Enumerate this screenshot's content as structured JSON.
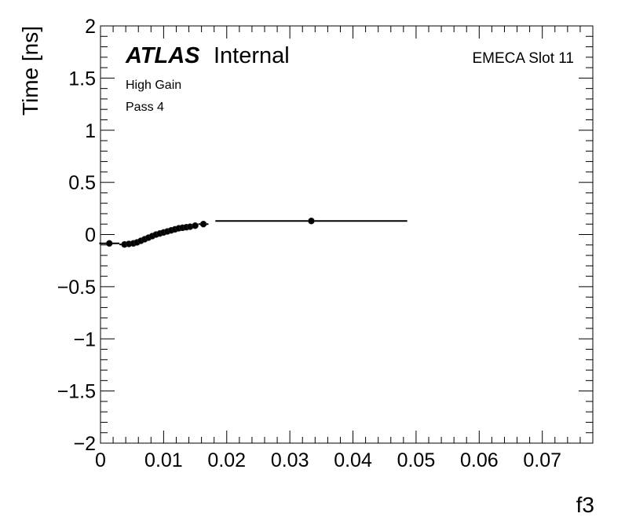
{
  "chart_data": {
    "type": "scatter",
    "title": "",
    "xlabel": "f3",
    "ylabel": "Time [ns]",
    "xlim": [
      0,
      0.078
    ],
    "ylim": [
      -2,
      2
    ],
    "x_ticks": [
      "0",
      "0.01",
      "0.02",
      "0.03",
      "0.04",
      "0.05",
      "0.06",
      "0.07"
    ],
    "x_tick_values": [
      0,
      0.01,
      0.02,
      0.03,
      0.04,
      0.05,
      0.06,
      0.07
    ],
    "y_ticks": [
      "2",
      "1.5",
      "1",
      "0.5",
      "0",
      "−0.5",
      "−1",
      "−1.5",
      "−2"
    ],
    "y_tick_values": [
      2,
      1.5,
      1,
      0.5,
      0,
      -0.5,
      -1,
      -1.5,
      -2
    ],
    "annotations": {
      "atlas": "ATLAS",
      "internal": "Internal",
      "gain": "High Gain",
      "pass": "Pass 4",
      "slot": "EMECA Slot 11"
    },
    "points": [
      {
        "x": 0.0014,
        "y": -0.085,
        "xerr": 0.0016
      },
      {
        "x": 0.0038,
        "y": -0.095,
        "xerr": 0.0008
      },
      {
        "x": 0.0045,
        "y": -0.09,
        "xerr": 0.0005
      },
      {
        "x": 0.0052,
        "y": -0.085,
        "xerr": 0.0004
      },
      {
        "x": 0.0058,
        "y": -0.075,
        "xerr": 0.0004
      },
      {
        "x": 0.0064,
        "y": -0.06,
        "xerr": 0.0004
      },
      {
        "x": 0.007,
        "y": -0.045,
        "xerr": 0.0004
      },
      {
        "x": 0.0076,
        "y": -0.03,
        "xerr": 0.0004
      },
      {
        "x": 0.0082,
        "y": -0.015,
        "xerr": 0.0004
      },
      {
        "x": 0.0088,
        "y": 0.0,
        "xerr": 0.0004
      },
      {
        "x": 0.0094,
        "y": 0.01,
        "xerr": 0.0004
      },
      {
        "x": 0.01,
        "y": 0.02,
        "xerr": 0.0004
      },
      {
        "x": 0.0106,
        "y": 0.03,
        "xerr": 0.0004
      },
      {
        "x": 0.0112,
        "y": 0.04,
        "xerr": 0.0004
      },
      {
        "x": 0.0118,
        "y": 0.05,
        "xerr": 0.0004
      },
      {
        "x": 0.0124,
        "y": 0.06,
        "xerr": 0.0004
      },
      {
        "x": 0.013,
        "y": 0.065,
        "xerr": 0.0004
      },
      {
        "x": 0.0136,
        "y": 0.07,
        "xerr": 0.0004
      },
      {
        "x": 0.0142,
        "y": 0.075,
        "xerr": 0.0004
      },
      {
        "x": 0.015,
        "y": 0.085,
        "xerr": 0.0005
      },
      {
        "x": 0.0163,
        "y": 0.1,
        "xerr": 0.0008
      },
      {
        "x": 0.0334,
        "y": 0.13,
        "xerr": 0.0152
      }
    ],
    "grid": false,
    "legend": "none"
  }
}
